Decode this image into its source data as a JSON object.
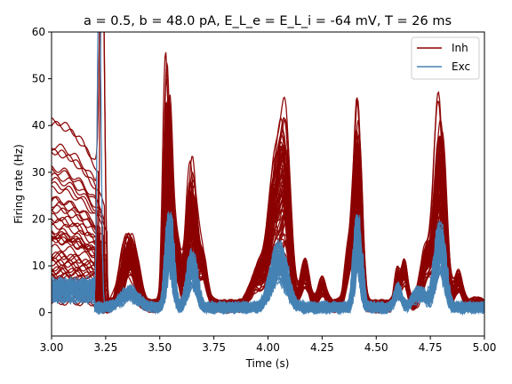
{
  "chart_data": {
    "type": "line",
    "title": "a = 0.5, b = 48.0 pA, E_L_e = E_L_i = -64 mV, T = 26 ms",
    "xlabel": "Time (s)",
    "ylabel": "Firing rate (Hz)",
    "xlim": [
      3.0,
      5.0
    ],
    "ylim": [
      -5,
      60
    ],
    "xticks": [
      3.0,
      3.25,
      3.5,
      3.75,
      4.0,
      4.25,
      4.5,
      4.75,
      5.0
    ],
    "xtick_labels": [
      "3.00",
      "3.25",
      "3.50",
      "3.75",
      "4.00",
      "4.25",
      "4.50",
      "4.75",
      "5.00"
    ],
    "yticks": [
      0,
      10,
      20,
      30,
      40,
      50,
      60
    ],
    "ytick_labels": [
      "0",
      "10",
      "20",
      "30",
      "40",
      "50",
      "60"
    ],
    "legend": {
      "position": "top-right",
      "entries": [
        "Inh",
        "Exc"
      ]
    },
    "series": [
      {
        "name": "Inh",
        "color": "#8b0000",
        "traces": 60,
        "initial_rates_hz": [
          37,
          32.5,
          31,
          29,
          25,
          24,
          22,
          20,
          19,
          17.5,
          16,
          15,
          14,
          13,
          12,
          11,
          10,
          9,
          8,
          7,
          6.5,
          6,
          5,
          4.5,
          4,
          3.5,
          3,
          2.5,
          2,
          1.5
        ],
        "peaks": [
          {
            "t": 3.0,
            "max_hz": 37.5
          },
          {
            "t": 3.22,
            "max_hz": 60
          },
          {
            "t": 3.36,
            "max_hz": 20.5
          },
          {
            "t": 3.535,
            "max_hz": 49
          },
          {
            "t": 3.65,
            "max_hz": 36
          },
          {
            "t": 4.03,
            "max_hz": 35
          },
          {
            "t": 4.08,
            "max_hz": 39
          },
          {
            "t": 4.415,
            "max_hz": 46.5
          },
          {
            "t": 4.595,
            "max_hz": 7.5
          },
          {
            "t": 4.795,
            "max_hz": 49
          }
        ]
      },
      {
        "name": "Exc",
        "color": "#4682b4",
        "traces": 60,
        "peaks": [
          {
            "t": 3.22,
            "max_hz": 60
          },
          {
            "t": 3.545,
            "max_hz": 22
          },
          {
            "t": 3.65,
            "max_hz": 13
          },
          {
            "t": 4.05,
            "max_hz": 15
          },
          {
            "t": 4.415,
            "max_hz": 20
          },
          {
            "t": 4.795,
            "max_hz": 18.5
          }
        ]
      }
    ]
  }
}
